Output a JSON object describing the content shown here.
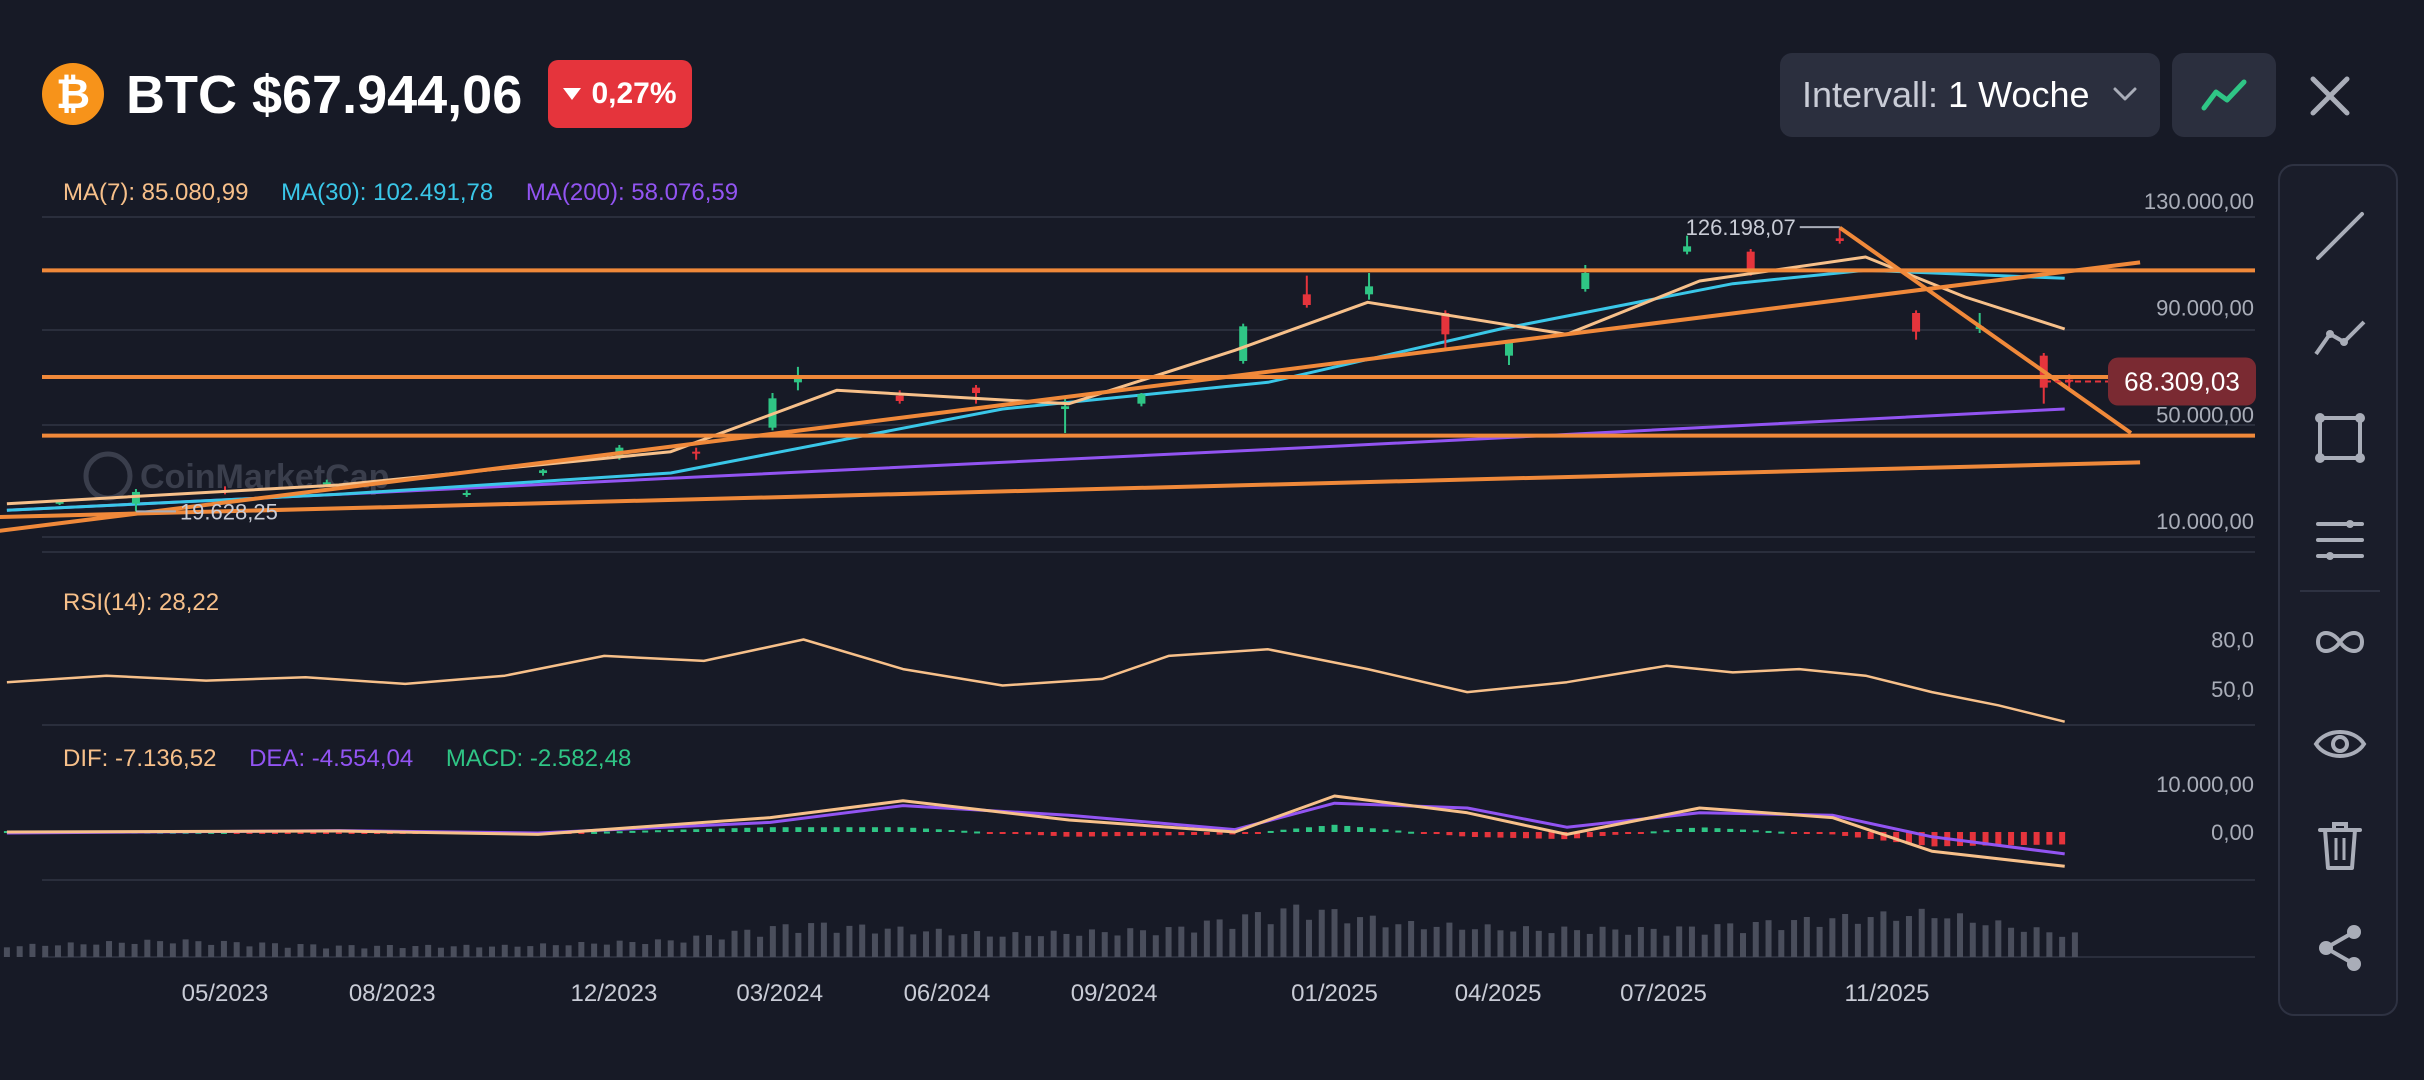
{
  "header": {
    "coin_logo_glyph": "₿",
    "title": "BTC $67.944,06",
    "change_pct": "0,27%",
    "change_direction": "down",
    "interval_label": "Intervall:",
    "interval_value": "1 Woche"
  },
  "icons": {
    "chart_type": "trend-line-icon",
    "close": "close-icon",
    "toolbar": [
      "draw-line-icon",
      "polyline-icon",
      "rectangle-icon",
      "parallel-lines-icon",
      "infinity-icon",
      "eye-icon",
      "trash-icon",
      "share-icon"
    ]
  },
  "colors": {
    "background": "#171a26",
    "up": "#2fc585",
    "down": "#e5343c",
    "ma7": "#f7c08a",
    "ma30": "#3ac7e8",
    "ma200": "#9254f2",
    "trendline": "#f0893a",
    "rsi": "#f7c08a",
    "dif": "#f7c08a",
    "dea": "#9254f2",
    "volume": "#4a4e5c"
  },
  "watermark": "CoinMarketCap",
  "chart_data": {
    "type": "candlestick",
    "interval": "1 Woche",
    "price_panel": {
      "legend": [
        {
          "name": "MA(7)",
          "value": "85.080,99"
        },
        {
          "name": "MA(30)",
          "value": "102.491,78"
        },
        {
          "name": "MA(200)",
          "value": "58.076,59"
        }
      ],
      "y_ticks": [
        "130.000,00",
        "90.000,00",
        "50.000,00",
        "10.000,00"
      ],
      "y_tick_values": [
        130000,
        90000,
        50000,
        10000
      ],
      "ylim": [
        10000,
        130000
      ],
      "max_annotation": {
        "label": "126.198,07",
        "value": 126198.07,
        "date": "2025-10-06"
      },
      "min_annotation": {
        "label": "19.628,25",
        "value": 19628.25,
        "date": "2023-03-13"
      },
      "current_price_label": "68.309,03",
      "current_price": 68309.03,
      "candles": [
        [
          "2023-01-30",
          23000,
          23800,
          22000,
          23200
        ],
        [
          "2023-03-13",
          22500,
          28000,
          19628,
          26900
        ],
        [
          "2023-05-01",
          27500,
          29000,
          26000,
          27000
        ],
        [
          "2023-06-26",
          30000,
          31500,
          29500,
          30500
        ],
        [
          "2023-09-11",
          26000,
          27500,
          25000,
          26500
        ],
        [
          "2023-10-23",
          34000,
          35500,
          33000,
          35000
        ],
        [
          "2023-12-04",
          40000,
          44500,
          39000,
          43500
        ],
        [
          "2024-01-15",
          42000,
          43500,
          39000,
          41500
        ],
        [
          "2024-02-26",
          51000,
          64000,
          50000,
          62000
        ],
        [
          "2024-03-11",
          68000,
          73800,
          65000,
          69500
        ],
        [
          "2024-05-06",
          63000,
          65000,
          60000,
          61000
        ],
        [
          "2024-06-17",
          66000,
          67000,
          60000,
          64000
        ],
        [
          "2024-08-05",
          58000,
          62000,
          49000,
          59000
        ],
        [
          "2024-09-16",
          60000,
          64000,
          59000,
          63500
        ],
        [
          "2024-11-11",
          76000,
          90000,
          75000,
          89000
        ],
        [
          "2024-12-16",
          101000,
          108000,
          96000,
          97000
        ],
        [
          "2025-01-20",
          101000,
          109000,
          99000,
          104000
        ],
        [
          "2025-03-03",
          94000,
          95000,
          80000,
          86000
        ],
        [
          "2025-04-07",
          78000,
          84000,
          74500,
          83000
        ],
        [
          "2025-05-19",
          103000,
          112000,
          102000,
          109000
        ],
        [
          "2025-07-14",
          117000,
          123000,
          116000,
          119000
        ],
        [
          "2025-08-18",
          117000,
          118000,
          108000,
          110000
        ],
        [
          "2025-10-06",
          122000,
          126198,
          120000,
          121000
        ],
        [
          "2025-11-17",
          94000,
          95000,
          84000,
          87000
        ],
        [
          "2025-12-22",
          88000,
          94000,
          86500,
          89000
        ],
        [
          "2026-01-26",
          78000,
          79000,
          60000,
          66000
        ],
        [
          "2026-02-09",
          69000,
          71000,
          66000,
          68309
        ]
      ],
      "ma7": [
        [
          2023,
          22500
        ],
        [
          2023.5,
          29500
        ],
        [
          2024,
          42000
        ],
        [
          2024.25,
          65000
        ],
        [
          2024.6,
          60000
        ],
        [
          2024.85,
          80000
        ],
        [
          2025.05,
          98000
        ],
        [
          2025.35,
          86000
        ],
        [
          2025.55,
          106000
        ],
        [
          2025.8,
          115000
        ],
        [
          2025.95,
          100000
        ],
        [
          2026.1,
          88000
        ]
      ],
      "ma30": [
        [
          2023,
          20000
        ],
        [
          2023.5,
          26000
        ],
        [
          2024,
          34000
        ],
        [
          2024.5,
          58000
        ],
        [
          2024.9,
          68000
        ],
        [
          2025.25,
          88000
        ],
        [
          2025.6,
          105000
        ],
        [
          2025.8,
          110000
        ],
        [
          2026.1,
          107000
        ]
      ],
      "ma200": [
        [
          2023,
          20000
        ],
        [
          2024,
          32000
        ],
        [
          2025,
          44000
        ],
        [
          2026.1,
          58000
        ]
      ],
      "horizontal_trendlines": [
        110000,
        70000,
        48000
      ],
      "diagonal_trendlines": [
        {
          "from": [
            "2022-12-01",
            10000
          ],
          "to": [
            "2026-03-20",
            113000
          ]
        },
        {
          "from": [
            "2022-12-01",
            17000
          ],
          "to": [
            "2026-03-20",
            38000
          ]
        },
        {
          "from": [
            "2025-10-06",
            126000
          ],
          "to": [
            "2026-03-15",
            49000
          ]
        }
      ]
    },
    "rsi_panel": {
      "legend": [
        {
          "name": "RSI(14)",
          "value": "28,22"
        }
      ],
      "y_ticks": [
        "80,0",
        "50,0"
      ],
      "y_tick_values": [
        80,
        50
      ],
      "ylim": [
        28,
        104
      ],
      "values": [
        [
          2023,
          54
        ],
        [
          2023.15,
          58
        ],
        [
          2023.3,
          55
        ],
        [
          2023.45,
          57
        ],
        [
          2023.6,
          53
        ],
        [
          2023.75,
          58
        ],
        [
          2023.9,
          70
        ],
        [
          2024.05,
          67
        ],
        [
          2024.2,
          80
        ],
        [
          2024.35,
          62
        ],
        [
          2024.5,
          52
        ],
        [
          2024.65,
          56
        ],
        [
          2024.75,
          70
        ],
        [
          2024.9,
          74
        ],
        [
          2025.05,
          62
        ],
        [
          2025.2,
          48
        ],
        [
          2025.35,
          54
        ],
        [
          2025.5,
          64
        ],
        [
          2025.6,
          60
        ],
        [
          2025.7,
          62
        ],
        [
          2025.8,
          58
        ],
        [
          2025.9,
          48
        ],
        [
          2026.0,
          40
        ],
        [
          2026.1,
          30
        ]
      ]
    },
    "macd_panel": {
      "legend": [
        {
          "name": "DIF",
          "value": "-7.136,52"
        },
        {
          "name": "DEA",
          "value": "-4.554,04"
        },
        {
          "name": "MACD",
          "value": "-2.582,48"
        }
      ],
      "y_ticks": [
        "10.000,00",
        "0,00"
      ],
      "y_tick_values": [
        10000,
        0
      ],
      "ylim": [
        -10000,
        15000
      ],
      "dif": [
        [
          2023,
          0
        ],
        [
          2023.5,
          200
        ],
        [
          2023.8,
          -500
        ],
        [
          2024.15,
          3000
        ],
        [
          2024.35,
          6500
        ],
        [
          2024.6,
          2500
        ],
        [
          2024.85,
          0
        ],
        [
          2025.0,
          7500
        ],
        [
          2025.2,
          4000
        ],
        [
          2025.35,
          -500
        ],
        [
          2025.55,
          5000
        ],
        [
          2025.75,
          3000
        ],
        [
          2025.9,
          -4000
        ],
        [
          2026.1,
          -7136
        ]
      ],
      "dea": [
        [
          2023,
          -200
        ],
        [
          2023.5,
          300
        ],
        [
          2023.8,
          -200
        ],
        [
          2024.15,
          2000
        ],
        [
          2024.35,
          5500
        ],
        [
          2024.6,
          3500
        ],
        [
          2024.85,
          500
        ],
        [
          2025.0,
          6000
        ],
        [
          2025.2,
          5000
        ],
        [
          2025.35,
          1000
        ],
        [
          2025.55,
          4000
        ],
        [
          2025.75,
          3500
        ],
        [
          2025.9,
          -1000
        ],
        [
          2026.1,
          -4554
        ]
      ]
    },
    "volume_panel": {
      "peaks": [
        [
          2023,
          2
        ],
        [
          2023.25,
          3
        ],
        [
          2023.5,
          2
        ],
        [
          2023.75,
          2
        ],
        [
          2024.0,
          3
        ],
        [
          2024.2,
          6
        ],
        [
          2024.5,
          4
        ],
        [
          2024.75,
          5
        ],
        [
          2024.95,
          9
        ],
        [
          2025.1,
          6
        ],
        [
          2025.3,
          5
        ],
        [
          2025.5,
          5
        ],
        [
          2025.75,
          7
        ],
        [
          2025.9,
          8
        ],
        [
          2026.05,
          5
        ],
        [
          2026.12,
          4
        ]
      ]
    },
    "x_ticks": [
      "05/2023",
      "08/2023",
      "12/2023",
      "03/2024",
      "06/2024",
      "09/2024",
      "01/2025",
      "04/2025",
      "07/2025",
      "11/2025"
    ],
    "x_tick_dates": [
      "2023-05-01",
      "2023-08-01",
      "2023-12-01",
      "2024-03-01",
      "2024-06-01",
      "2024-09-01",
      "2025-01-01",
      "2025-04-01",
      "2025-07-01",
      "2025-11-01"
    ]
  }
}
